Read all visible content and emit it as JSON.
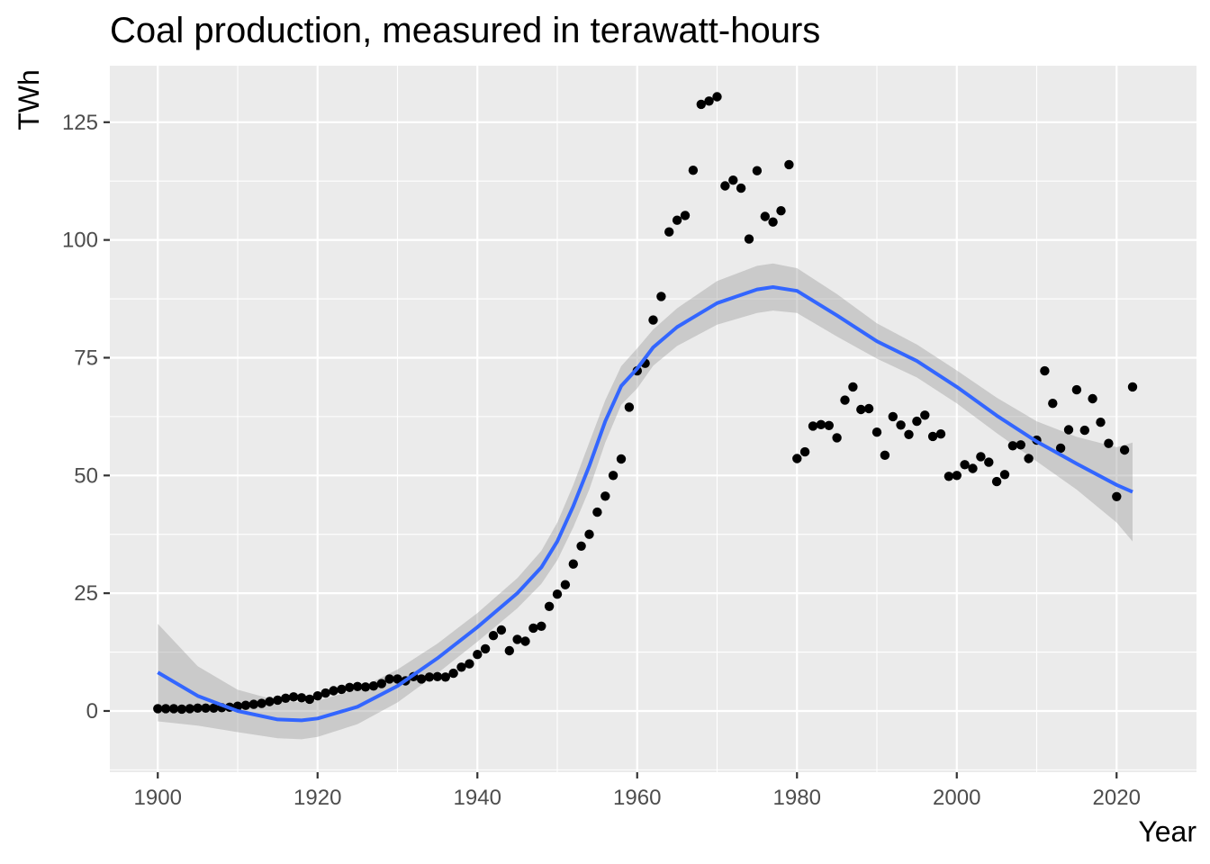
{
  "chart_data": {
    "type": "scatter",
    "title": "Coal production, measured in terawatt-hours",
    "xlabel": "Year",
    "ylabel": "TWh",
    "xlim": [
      1894,
      2030
    ],
    "ylim": [
      -13,
      137
    ],
    "xticks": [
      1900,
      1920,
      1940,
      1960,
      1980,
      2000,
      2020
    ],
    "yticks": [
      0,
      25,
      50,
      75,
      100,
      125
    ],
    "xtick_labels": [
      "1900",
      "1920",
      "1940",
      "1960",
      "1980",
      "2000",
      "2020"
    ],
    "ytick_labels": [
      "0",
      "25",
      "50",
      "75",
      "100",
      "125"
    ],
    "grid": true,
    "legend": "none",
    "colors": {
      "panel_background": "#ebebeb",
      "grid_major": "#ffffff",
      "points": "#000000",
      "smooth_line": "#3366ff",
      "confidence_band": "#999999"
    },
    "series": [
      {
        "type": "scatter",
        "points": [
          [
            1900,
            0.5
          ],
          [
            1901,
            0.5
          ],
          [
            1902,
            0.5
          ],
          [
            1903,
            0.4
          ],
          [
            1904,
            0.5
          ],
          [
            1905,
            0.6
          ],
          [
            1906,
            0.6
          ],
          [
            1907,
            0.6
          ],
          [
            1908,
            0.7
          ],
          [
            1909,
            0.8
          ],
          [
            1910,
            1.0
          ],
          [
            1911,
            1.2
          ],
          [
            1912,
            1.4
          ],
          [
            1913,
            1.6
          ],
          [
            1914,
            2.0
          ],
          [
            1915,
            2.3
          ],
          [
            1916,
            2.7
          ],
          [
            1917,
            3.0
          ],
          [
            1918,
            2.8
          ],
          [
            1919,
            2.5
          ],
          [
            1920,
            3.2
          ],
          [
            1921,
            3.8
          ],
          [
            1922,
            4.3
          ],
          [
            1923,
            4.6
          ],
          [
            1924,
            5.0
          ],
          [
            1925,
            5.2
          ],
          [
            1926,
            5.1
          ],
          [
            1927,
            5.3
          ],
          [
            1928,
            5.8
          ],
          [
            1929,
            6.8
          ],
          [
            1930,
            6.8
          ],
          [
            1931,
            6.4
          ],
          [
            1932,
            7.3
          ],
          [
            1933,
            6.8
          ],
          [
            1934,
            7.2
          ],
          [
            1935,
            7.3
          ],
          [
            1936,
            7.2
          ],
          [
            1937,
            8.0
          ],
          [
            1938,
            9.3
          ],
          [
            1939,
            10.0
          ],
          [
            1940,
            12.0
          ],
          [
            1941,
            13.2
          ],
          [
            1942,
            16.0
          ],
          [
            1943,
            17.2
          ],
          [
            1944,
            12.8
          ],
          [
            1945,
            15.2
          ],
          [
            1946,
            14.8
          ],
          [
            1947,
            17.6
          ],
          [
            1948,
            18.0
          ],
          [
            1949,
            22.2
          ],
          [
            1950,
            24.8
          ],
          [
            1951,
            26.8
          ],
          [
            1952,
            31.2
          ],
          [
            1953,
            35.0
          ],
          [
            1954,
            37.5
          ],
          [
            1955,
            42.2
          ],
          [
            1956,
            45.6
          ],
          [
            1957,
            50.0
          ],
          [
            1958,
            53.5
          ],
          [
            1959,
            64.5
          ],
          [
            1960,
            72.2
          ],
          [
            1961,
            73.8
          ],
          [
            1962,
            83.0
          ],
          [
            1963,
            88.0
          ],
          [
            1964,
            101.7
          ],
          [
            1965,
            104.2
          ],
          [
            1966,
            105.2
          ],
          [
            1967,
            114.8
          ],
          [
            1968,
            128.8
          ],
          [
            1969,
            129.5
          ],
          [
            1970,
            130.4
          ],
          [
            1971,
            111.5
          ],
          [
            1972,
            112.7
          ],
          [
            1973,
            111.0
          ],
          [
            1974,
            100.2
          ],
          [
            1975,
            114.7
          ],
          [
            1976,
            105.0
          ],
          [
            1977,
            103.8
          ],
          [
            1978,
            106.2
          ],
          [
            1979,
            116.0
          ],
          [
            1980,
            53.6
          ],
          [
            1981,
            55.0
          ],
          [
            1982,
            60.5
          ],
          [
            1983,
            60.8
          ],
          [
            1984,
            60.6
          ],
          [
            1985,
            58.0
          ],
          [
            1986,
            66.0
          ],
          [
            1987,
            68.8
          ],
          [
            1988,
            64.0
          ],
          [
            1989,
            64.2
          ],
          [
            1990,
            59.2
          ],
          [
            1991,
            54.3
          ],
          [
            1992,
            62.5
          ],
          [
            1993,
            60.7
          ],
          [
            1994,
            58.7
          ],
          [
            1995,
            61.5
          ],
          [
            1996,
            62.8
          ],
          [
            1997,
            58.3
          ],
          [
            1998,
            58.8
          ],
          [
            1999,
            49.8
          ],
          [
            2000,
            50.0
          ],
          [
            2001,
            52.3
          ],
          [
            2002,
            51.5
          ],
          [
            2003,
            54.0
          ],
          [
            2004,
            52.8
          ],
          [
            2005,
            48.7
          ],
          [
            2006,
            50.2
          ],
          [
            2007,
            56.3
          ],
          [
            2008,
            56.5
          ],
          [
            2009,
            53.6
          ],
          [
            2010,
            57.5
          ],
          [
            2011,
            72.2
          ],
          [
            2012,
            65.3
          ],
          [
            2013,
            55.8
          ],
          [
            2014,
            59.7
          ],
          [
            2015,
            68.2
          ],
          [
            2016,
            59.6
          ],
          [
            2017,
            66.3
          ],
          [
            2018,
            61.3
          ],
          [
            2019,
            56.8
          ],
          [
            2020,
            45.5
          ],
          [
            2021,
            55.4
          ],
          [
            2022,
            68.8
          ]
        ]
      },
      {
        "type": "line",
        "smooth": [
          [
            1900,
            8.2
          ],
          [
            1905,
            3.2
          ],
          [
            1910,
            0.0
          ],
          [
            1915,
            -1.8
          ],
          [
            1918,
            -2.0
          ],
          [
            1920,
            -1.6
          ],
          [
            1925,
            0.9
          ],
          [
            1930,
            5.3
          ],
          [
            1935,
            11.2
          ],
          [
            1940,
            17.8
          ],
          [
            1945,
            25.0
          ],
          [
            1948,
            30.5
          ],
          [
            1950,
            36.0
          ],
          [
            1952,
            43.5
          ],
          [
            1954,
            52.0
          ],
          [
            1956,
            61.5
          ],
          [
            1958,
            69.0
          ],
          [
            1960,
            72.7
          ],
          [
            1962,
            77.2
          ],
          [
            1965,
            81.5
          ],
          [
            1970,
            86.6
          ],
          [
            1975,
            89.5
          ],
          [
            1977,
            90.0
          ],
          [
            1980,
            89.2
          ],
          [
            1985,
            84.0
          ],
          [
            1990,
            78.5
          ],
          [
            1995,
            74.3
          ],
          [
            2000,
            68.8
          ],
          [
            2005,
            62.7
          ],
          [
            2010,
            57.2
          ],
          [
            2015,
            52.5
          ],
          [
            2020,
            48.0
          ],
          [
            2022,
            46.5
          ]
        ],
        "upper": [
          [
            1900,
            18.5
          ],
          [
            1905,
            9.5
          ],
          [
            1910,
            4.5
          ],
          [
            1915,
            2.2
          ],
          [
            1918,
            1.8
          ],
          [
            1920,
            2.2
          ],
          [
            1925,
            4.6
          ],
          [
            1930,
            8.8
          ],
          [
            1935,
            14.3
          ],
          [
            1940,
            20.8
          ],
          [
            1945,
            28.2
          ],
          [
            1948,
            34.0
          ],
          [
            1950,
            40.0
          ],
          [
            1952,
            48.0
          ],
          [
            1954,
            57.0
          ],
          [
            1956,
            66.0
          ],
          [
            1958,
            73.2
          ],
          [
            1960,
            77.0
          ],
          [
            1962,
            81.0
          ],
          [
            1965,
            85.5
          ],
          [
            1970,
            91.3
          ],
          [
            1975,
            94.5
          ],
          [
            1977,
            95.0
          ],
          [
            1980,
            94.0
          ],
          [
            1985,
            88.5
          ],
          [
            1990,
            82.3
          ],
          [
            1995,
            77.8
          ],
          [
            2000,
            72.3
          ],
          [
            2005,
            66.5
          ],
          [
            2010,
            61.5
          ],
          [
            2015,
            58.2
          ],
          [
            2020,
            56.0
          ],
          [
            2022,
            57.0
          ]
        ],
        "lower": [
          [
            1900,
            -2.2
          ],
          [
            1905,
            -3.1
          ],
          [
            1910,
            -4.5
          ],
          [
            1915,
            -5.8
          ],
          [
            1918,
            -6.0
          ],
          [
            1920,
            -5.5
          ],
          [
            1925,
            -2.8
          ],
          [
            1930,
            1.8
          ],
          [
            1935,
            8.0
          ],
          [
            1940,
            14.7
          ],
          [
            1945,
            21.8
          ],
          [
            1948,
            27.0
          ],
          [
            1950,
            32.0
          ],
          [
            1952,
            39.0
          ],
          [
            1954,
            47.0
          ],
          [
            1956,
            57.0
          ],
          [
            1958,
            65.0
          ],
          [
            1960,
            68.5
          ],
          [
            1962,
            73.3
          ],
          [
            1965,
            77.5
          ],
          [
            1970,
            82.0
          ],
          [
            1975,
            84.5
          ],
          [
            1977,
            85.0
          ],
          [
            1980,
            84.5
          ],
          [
            1985,
            79.5
          ],
          [
            1990,
            74.8
          ],
          [
            1995,
            70.8
          ],
          [
            2000,
            65.3
          ],
          [
            2005,
            59.0
          ],
          [
            2010,
            53.0
          ],
          [
            2015,
            47.0
          ],
          [
            2020,
            40.0
          ],
          [
            2022,
            36.0
          ]
        ]
      }
    ]
  }
}
